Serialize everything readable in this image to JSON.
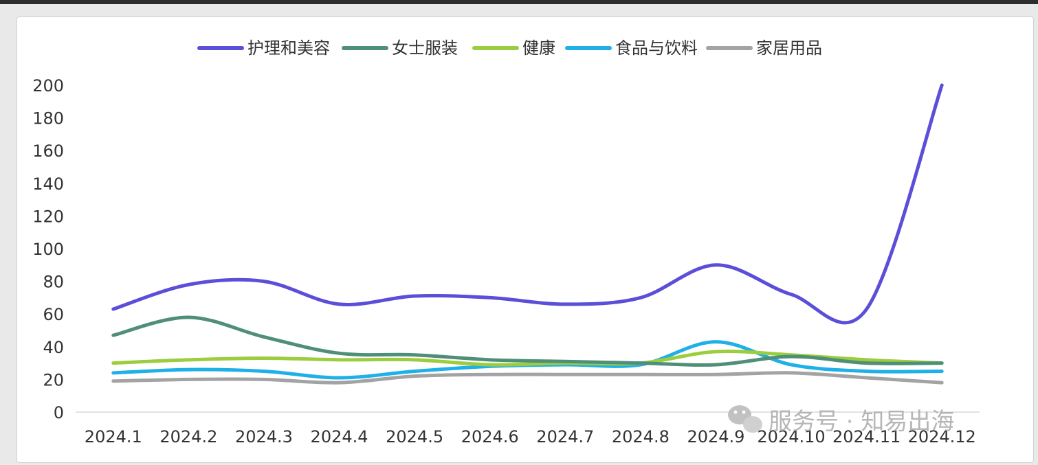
{
  "chart_data": {
    "type": "line",
    "categories": [
      "2024.1",
      "2024.2",
      "2024.3",
      "2024.4",
      "2024.5",
      "2024.6",
      "2024.7",
      "2024.8",
      "2024.9",
      "2024.10",
      "2024.11",
      "2024.12"
    ],
    "ylim": [
      0,
      200
    ],
    "yticks": [
      0,
      20,
      40,
      60,
      80,
      100,
      120,
      140,
      160,
      180,
      200
    ],
    "grid": false,
    "legend_position": "top",
    "series": [
      {
        "name": "护理和美容",
        "color": "#5b4ed8",
        "values": [
          63,
          78,
          80,
          66,
          71,
          70,
          66,
          70,
          90,
          72,
          63,
          200
        ]
      },
      {
        "name": "女士服装",
        "color": "#4f8f78",
        "values": [
          47,
          58,
          46,
          36,
          35,
          32,
          31,
          30,
          29,
          34,
          30,
          30
        ]
      },
      {
        "name": "健康",
        "color": "#9ccd3f",
        "values": [
          30,
          32,
          33,
          32,
          32,
          29,
          30,
          30,
          37,
          35,
          32,
          30
        ]
      },
      {
        "name": "食品与饮料",
        "color": "#1fb0e8",
        "values": [
          24,
          26,
          25,
          21,
          25,
          28,
          29,
          29,
          43,
          29,
          25,
          25
        ]
      },
      {
        "name": "家居用品",
        "color": "#a3a3a3",
        "values": [
          19,
          20,
          20,
          18,
          22,
          23,
          23,
          23,
          23,
          24,
          21,
          18
        ]
      }
    ]
  },
  "watermark": {
    "text": "服务号 · 知易出海",
    "icon": "wechat-icon"
  }
}
